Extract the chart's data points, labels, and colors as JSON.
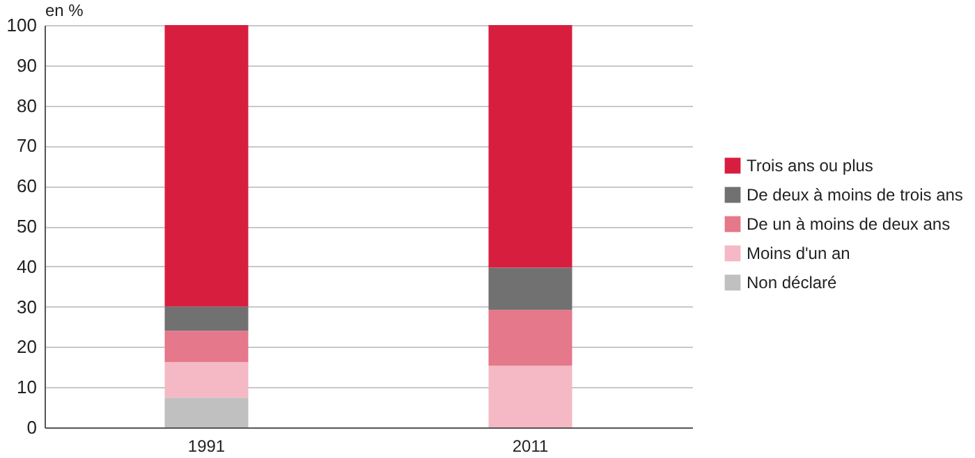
{
  "chart_data": {
    "type": "bar",
    "stacked": true,
    "ylabel": "en %",
    "categories": [
      "1991",
      "2011"
    ],
    "series": [
      {
        "name": "Non déclaré",
        "color": "#c0c0c0",
        "values": [
          7.4,
          0
        ]
      },
      {
        "name": "Moins d'un an",
        "color": "#f4b9c4",
        "values": [
          8.8,
          15.3
        ]
      },
      {
        "name": "De un à moins de deux ans",
        "color": "#e5788a",
        "values": [
          7.8,
          13.9
        ]
      },
      {
        "name": "De deux à moins de trois ans",
        "color": "#717171",
        "values": [
          6.0,
          10.5
        ]
      },
      {
        "name": "Trois ans ou plus",
        "color": "#d81e3f",
        "values": [
          70.0,
          60.3
        ]
      }
    ],
    "ylim": [
      0,
      100
    ],
    "yticks": [
      0,
      10,
      20,
      30,
      40,
      50,
      60,
      70,
      80,
      90,
      100
    ],
    "grid": "y",
    "legend": "right"
  }
}
